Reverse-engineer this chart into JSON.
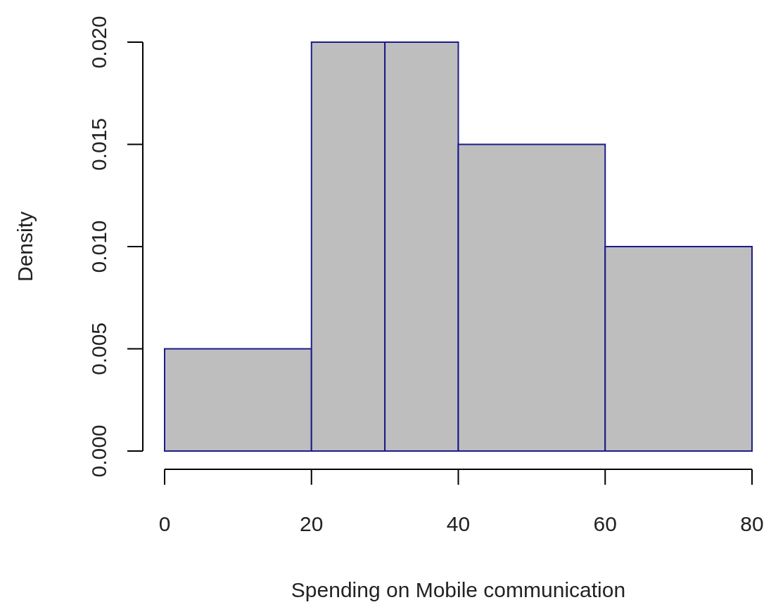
{
  "chart_data": {
    "type": "histogram",
    "xlabel": "Spending on Mobile communication",
    "ylabel": "Density",
    "bins": [
      0,
      20,
      30,
      40,
      60,
      80
    ],
    "values": [
      0.005,
      0.02,
      0.02,
      0.015,
      0.01
    ],
    "color": "#bebebe",
    "xlim": [
      0,
      80
    ],
    "xticks": [
      0,
      20,
      40,
      60,
      80
    ],
    "ylim": [
      0,
      0.02
    ],
    "yticks": [
      {
        "value": 0,
        "label": "0.000"
      },
      {
        "value": 0.005,
        "label": "0.005"
      },
      {
        "value": 0.01,
        "label": "0.010"
      },
      {
        "value": 0.015,
        "label": "0.015"
      },
      {
        "value": 0.02,
        "label": "0.020"
      }
    ]
  }
}
